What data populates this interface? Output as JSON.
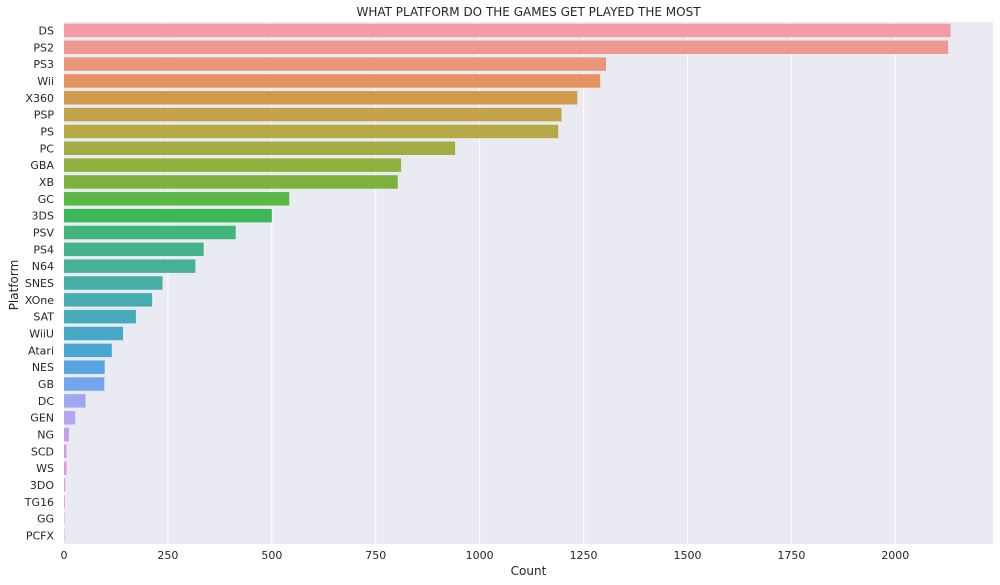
{
  "chart_data": {
    "type": "bar",
    "orientation": "horizontal",
    "title": "WHAT PLATFORM DO THE GAMES GET PLAYED THE MOST",
    "xlabel": "Count",
    "ylabel": "Platform",
    "xlim": [
      0,
      2235
    ],
    "xticks": [
      0,
      250,
      500,
      750,
      1000,
      1250,
      1500,
      1750,
      2000
    ],
    "grid": true,
    "background": "#eaeaf2",
    "categories": [
      "DS",
      "PS2",
      "PS3",
      "Wii",
      "X360",
      "PSP",
      "PS",
      "PC",
      "GBA",
      "XB",
      "GC",
      "3DS",
      "PSV",
      "PS4",
      "N64",
      "SNES",
      "XOne",
      "SAT",
      "WiiU",
      "Atari",
      "NES",
      "GB",
      "DC",
      "GEN",
      "NG",
      "SCD",
      "WS",
      "3DO",
      "TG16",
      "GG",
      "PCFX"
    ],
    "values": [
      2133,
      2127,
      1304,
      1290,
      1235,
      1197,
      1189,
      941,
      811,
      803,
      542,
      500,
      413,
      336,
      316,
      237,
      212,
      173,
      142,
      115,
      98,
      97,
      52,
      27,
      12,
      6,
      6,
      3,
      2,
      1,
      1
    ],
    "colors": [
      "#f39ba6",
      "#ef9890",
      "#ea9779",
      "#e49460",
      "#cf9b4a",
      "#c3a34b",
      "#b7a945",
      "#a3ac42",
      "#90b03f",
      "#7db23f",
      "#5ab847",
      "#3cb757",
      "#42b57c",
      "#44b38c",
      "#45b199",
      "#45afa6",
      "#46adb0",
      "#47abbb",
      "#48a8c6",
      "#48a6d3",
      "#58a5e3",
      "#73a6ef",
      "#9faaee",
      "#b3a5ee",
      "#c49fee",
      "#d69aea",
      "#e396e4",
      "#ea98d2",
      "#ef9ac4",
      "#f29ab5",
      "#f59aa6"
    ]
  }
}
